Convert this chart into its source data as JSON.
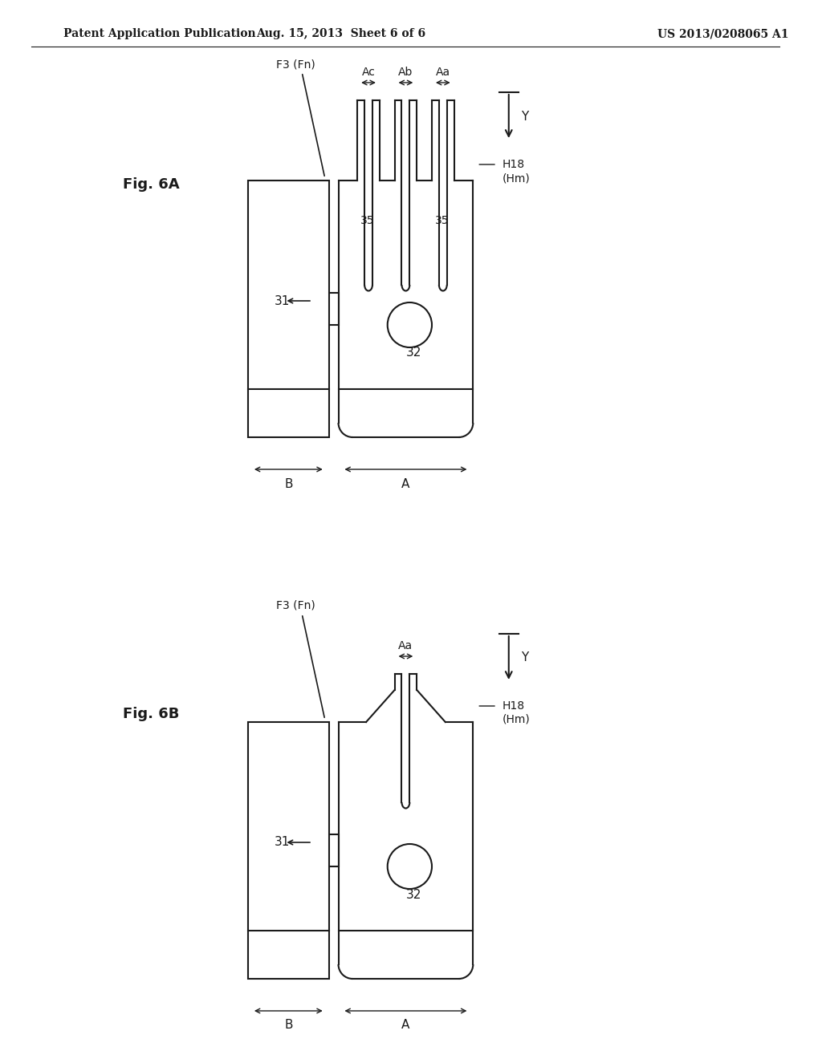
{
  "background_color": "#ffffff",
  "header_left": "Patent Application Publication",
  "header_center": "Aug. 15, 2013  Sheet 6 of 6",
  "header_right": "US 2013/0208065 A1",
  "header_fontsize": 10,
  "fig6a_label": "Fig. 6A",
  "fig6b_label": "Fig. 6B",
  "line_color": "#1a1a1a",
  "line_width": 1.5
}
